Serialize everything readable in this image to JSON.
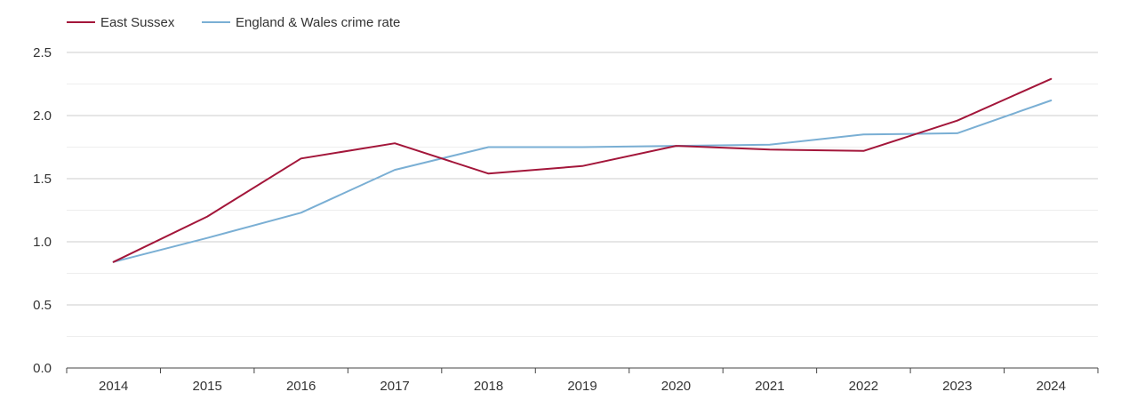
{
  "chart_data": {
    "type": "line",
    "categories": [
      "2014",
      "2015",
      "2016",
      "2017",
      "2018",
      "2019",
      "2020",
      "2021",
      "2022",
      "2023",
      "2024"
    ],
    "series": [
      {
        "name": "East Sussex",
        "color": "#a3163a",
        "values": [
          0.84,
          1.2,
          1.66,
          1.78,
          1.54,
          1.6,
          1.76,
          1.73,
          1.72,
          1.96,
          2.29
        ]
      },
      {
        "name": "England & Wales crime rate",
        "color": "#7aafd4",
        "values": [
          0.84,
          1.03,
          1.23,
          1.57,
          1.75,
          1.75,
          1.76,
          1.77,
          1.85,
          1.86,
          2.12
        ]
      }
    ],
    "ylim": [
      0,
      2.5
    ],
    "y_ticks": [
      "0.0",
      "0.5",
      "1.0",
      "1.5",
      "2.0",
      "2.5"
    ],
    "grid": true,
    "legend_position": "top-left",
    "title": "",
    "xlabel": "",
    "ylabel": ""
  }
}
